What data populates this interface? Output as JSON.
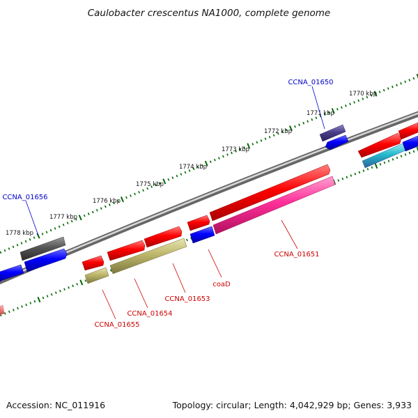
{
  "title": "Caulobacter crescentus NA1000, complete genome",
  "footer": {
    "accession": "Accession: NC_011916",
    "stats": "Topology: circular; Length: 4,042,929 bp; Genes: 3,933"
  },
  "scale_labels": [
    "1770 kbp",
    "1771 kbp",
    "1772 kbp",
    "1773 kbp",
    "1774 kbp",
    "1775 kbp",
    "1776 kbp",
    "1777 kbp",
    "1778 kbp"
  ],
  "genes": [
    {
      "label": "CCNA_01650",
      "color": "#0000cc"
    },
    {
      "label": "CCNA_01656",
      "color": "#0000cc"
    },
    {
      "label": "CCNA_01651",
      "color": "#cc0000"
    },
    {
      "label": "coaD",
      "color": "#cc0000"
    },
    {
      "label": "CCNA_01653",
      "color": "#cc0000"
    },
    {
      "label": "CCNA_01654",
      "color": "#cc0000"
    },
    {
      "label": "CCNA_01655",
      "color": "#cc0000"
    }
  ],
  "colors": {
    "backbone": "#888888",
    "ticks": "#006600",
    "forward_cds": "#ff0000",
    "reverse_cds": "#0000ff",
    "pink_cds": "#ff3399",
    "olive_cds": "#bdb76b",
    "gray_cds": "#555555",
    "purple_cds": "#4b3f8a",
    "cyan_cds": "#22bbcc"
  }
}
